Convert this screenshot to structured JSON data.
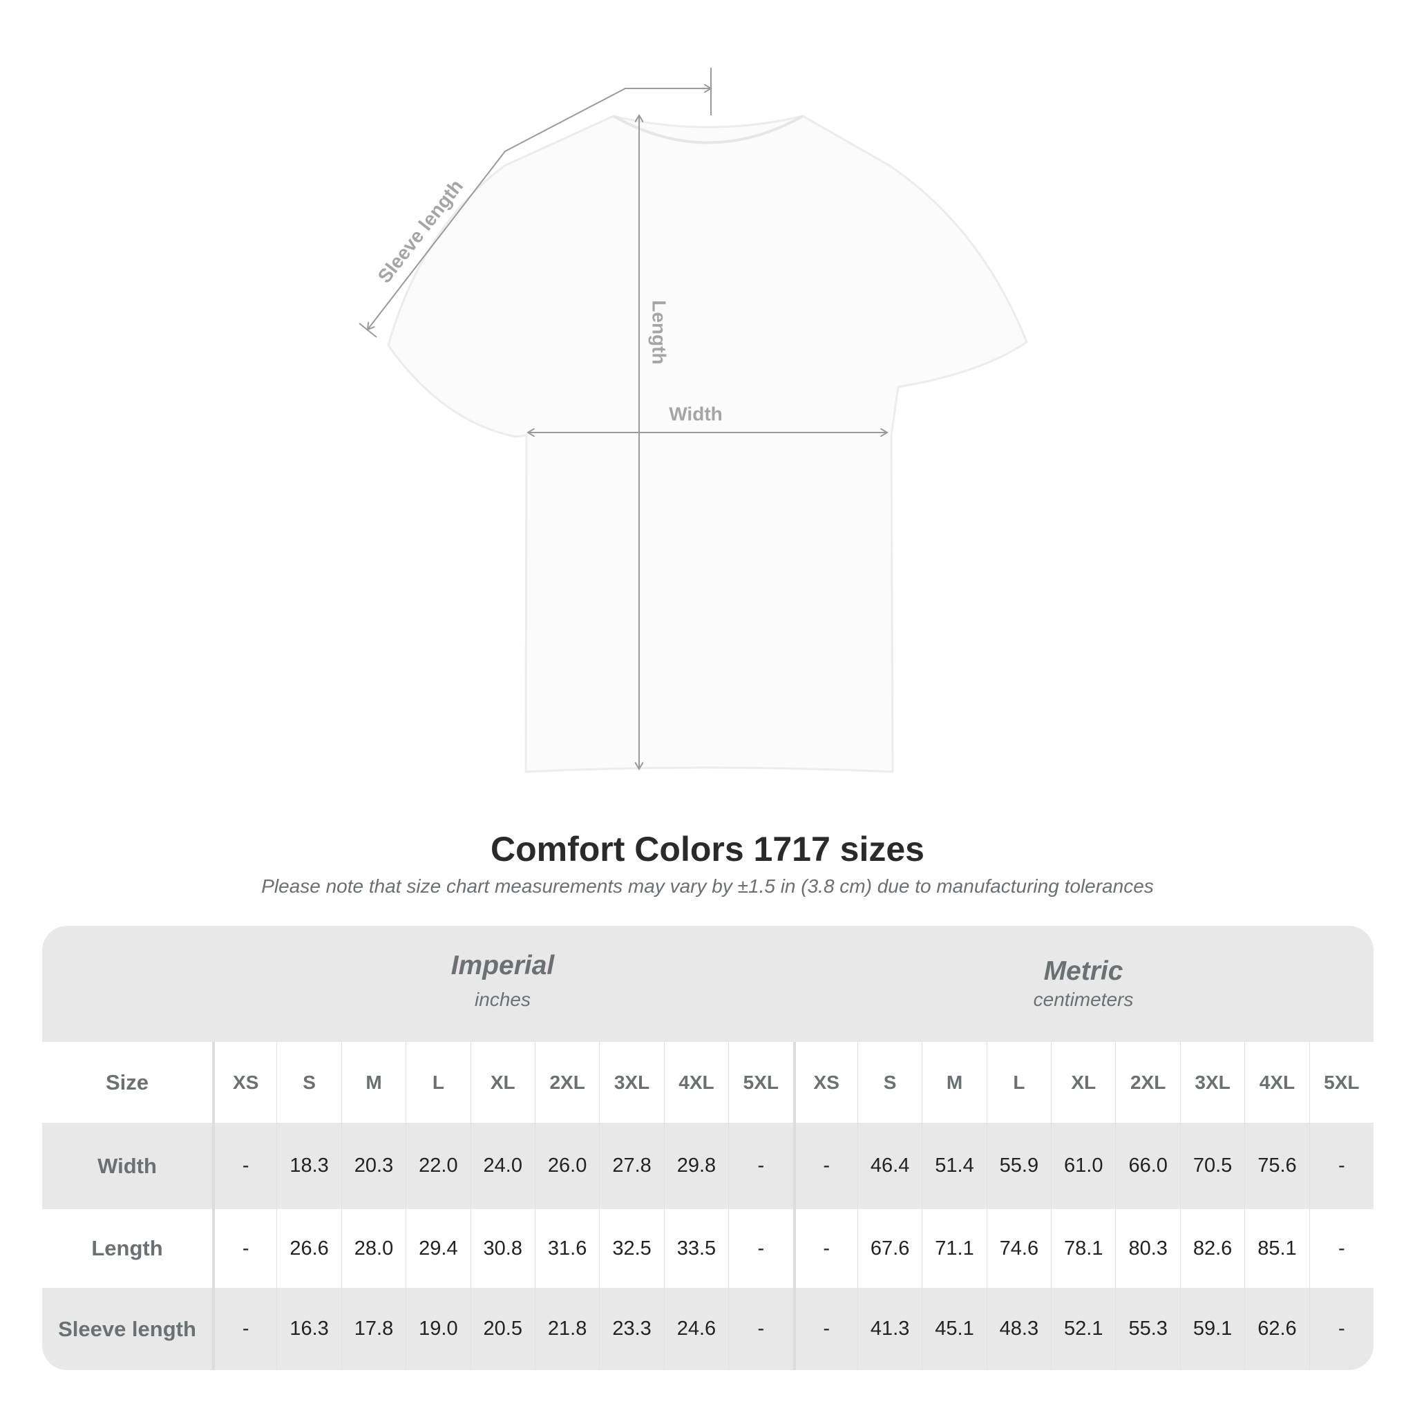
{
  "diagram": {
    "labels": {
      "sleeve": "Sleeve length",
      "length": "Length",
      "width": "Width"
    }
  },
  "title": "Comfort Colors 1717 sizes",
  "subtitle": "Please note that size chart measurements may vary by ±1.5 in (3.8 cm) due to manufacturing tolerances",
  "table": {
    "imperial": {
      "name": "Imperial",
      "unit": "inches"
    },
    "metric": {
      "name": "Metric",
      "unit": "centimeters"
    },
    "size_label": "Size",
    "sizes": [
      "XS",
      "S",
      "M",
      "L",
      "XL",
      "2XL",
      "3XL",
      "4XL",
      "5XL"
    ],
    "rows": [
      {
        "label": "Width",
        "imperial": [
          "-",
          "18.3",
          "20.3",
          "22.0",
          "24.0",
          "26.0",
          "27.8",
          "29.8",
          "-"
        ],
        "metric": [
          "-",
          "46.4",
          "51.4",
          "55.9",
          "61.0",
          "66.0",
          "70.5",
          "75.6",
          "-"
        ]
      },
      {
        "label": "Length",
        "imperial": [
          "-",
          "26.6",
          "28.0",
          "29.4",
          "30.8",
          "31.6",
          "32.5",
          "33.5",
          "-"
        ],
        "metric": [
          "-",
          "67.6",
          "71.1",
          "74.6",
          "78.1",
          "80.3",
          "82.6",
          "85.1",
          "-"
        ]
      },
      {
        "label": "Sleeve length",
        "imperial": [
          "-",
          "16.3",
          "17.8",
          "19.0",
          "20.5",
          "21.8",
          "23.3",
          "24.6",
          "-"
        ],
        "metric": [
          "-",
          "41.3",
          "45.1",
          "48.3",
          "52.1",
          "55.3",
          "59.1",
          "62.6",
          "-"
        ]
      }
    ]
  }
}
